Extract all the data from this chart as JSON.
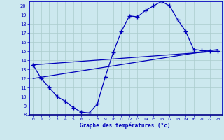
{
  "xlabel": "Graphe des températures (°c)",
  "bg_color": "#cce8ee",
  "line_color": "#0000bb",
  "grid_color": "#aacccc",
  "xlim": [
    -0.5,
    23.5
  ],
  "ylim": [
    8,
    20.5
  ],
  "yticks": [
    8,
    9,
    10,
    11,
    12,
    13,
    14,
    15,
    16,
    17,
    18,
    19,
    20
  ],
  "xticks": [
    0,
    1,
    2,
    3,
    4,
    5,
    6,
    7,
    8,
    9,
    10,
    11,
    12,
    13,
    14,
    15,
    16,
    17,
    18,
    19,
    20,
    21,
    22,
    23
  ],
  "curve_x": [
    0,
    1,
    2,
    3,
    4,
    5,
    6,
    7,
    8,
    9,
    10,
    11,
    12,
    13,
    14,
    15,
    16,
    17,
    18,
    19,
    20,
    21,
    22,
    23
  ],
  "curve_y": [
    13.5,
    12.0,
    11.0,
    10.0,
    9.5,
    8.8,
    8.3,
    8.2,
    9.2,
    12.2,
    14.9,
    17.2,
    18.9,
    18.8,
    19.5,
    20.0,
    20.5,
    20.0,
    18.5,
    17.2,
    15.2,
    15.1,
    15.0,
    15.0
  ],
  "line1_x": [
    0,
    23
  ],
  "line1_y": [
    12.0,
    15.2
  ],
  "line2_x": [
    0,
    23
  ],
  "line2_y": [
    13.5,
    15.0
  ]
}
